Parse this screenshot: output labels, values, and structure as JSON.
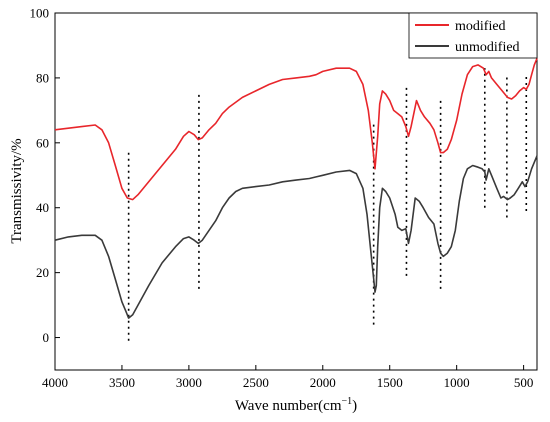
{
  "chart_data": {
    "type": "line",
    "xlabel": "Wave number(cm",
    "xlabel_sup": "−1",
    "xlabel_tail": ")",
    "ylabel": "Transmissivity/%",
    "xlim": [
      4000,
      400
    ],
    "ylim": [
      -10,
      100
    ],
    "x_ticks": [
      4000,
      3500,
      3000,
      2500,
      2000,
      1500,
      1000,
      500
    ],
    "x_tick_labels": [
      "4000",
      "3500",
      "3000",
      "2500",
      "2000",
      "1500",
      "1000",
      "500"
    ],
    "y_ticks": [
      0,
      20,
      40,
      60,
      80,
      100
    ],
    "y_tick_labels": [
      "0",
      "20",
      "40",
      "60",
      "80",
      "100"
    ],
    "grid": false,
    "legend_position": "top-right",
    "series": [
      {
        "name": "modified",
        "color": "#e8262b",
        "points": [
          [
            4000,
            64
          ],
          [
            3900,
            64.5
          ],
          [
            3800,
            65
          ],
          [
            3700,
            65.5
          ],
          [
            3650,
            64
          ],
          [
            3600,
            60
          ],
          [
            3550,
            53
          ],
          [
            3500,
            46
          ],
          [
            3460,
            43
          ],
          [
            3420,
            42.5
          ],
          [
            3380,
            44
          ],
          [
            3300,
            48
          ],
          [
            3200,
            53
          ],
          [
            3100,
            58
          ],
          [
            3040,
            62
          ],
          [
            3000,
            63.5
          ],
          [
            2960,
            62.5
          ],
          [
            2930,
            61
          ],
          [
            2900,
            61.5
          ],
          [
            2850,
            64
          ],
          [
            2800,
            66
          ],
          [
            2750,
            69
          ],
          [
            2700,
            71
          ],
          [
            2600,
            74
          ],
          [
            2500,
            76
          ],
          [
            2400,
            78
          ],
          [
            2300,
            79.5
          ],
          [
            2200,
            80
          ],
          [
            2100,
            80.5
          ],
          [
            2050,
            81
          ],
          [
            2000,
            82
          ],
          [
            1900,
            83
          ],
          [
            1800,
            83
          ],
          [
            1750,
            82
          ],
          [
            1700,
            78
          ],
          [
            1660,
            70
          ],
          [
            1630,
            60
          ],
          [
            1610,
            52
          ],
          [
            1590,
            62
          ],
          [
            1575,
            72
          ],
          [
            1555,
            76
          ],
          [
            1530,
            75
          ],
          [
            1500,
            73
          ],
          [
            1470,
            70
          ],
          [
            1440,
            69
          ],
          [
            1410,
            68
          ],
          [
            1380,
            65
          ],
          [
            1360,
            62
          ],
          [
            1340,
            65
          ],
          [
            1300,
            73
          ],
          [
            1270,
            70
          ],
          [
            1240,
            68
          ],
          [
            1200,
            66
          ],
          [
            1170,
            64
          ],
          [
            1140,
            60
          ],
          [
            1120,
            57
          ],
          [
            1100,
            57
          ],
          [
            1070,
            58
          ],
          [
            1040,
            61
          ],
          [
            1000,
            67
          ],
          [
            960,
            75
          ],
          [
            920,
            81
          ],
          [
            880,
            83.5
          ],
          [
            840,
            84
          ],
          [
            800,
            83
          ],
          [
            780,
            81
          ],
          [
            760,
            82
          ],
          [
            740,
            80
          ],
          [
            700,
            78
          ],
          [
            660,
            76
          ],
          [
            620,
            74
          ],
          [
            590,
            73.5
          ],
          [
            560,
            74.5
          ],
          [
            530,
            76
          ],
          [
            500,
            77
          ],
          [
            480,
            76.5
          ],
          [
            460,
            78
          ],
          [
            440,
            81
          ],
          [
            420,
            84
          ],
          [
            400,
            86
          ]
        ]
      },
      {
        "name": "unmodified",
        "color": "#3a3a3a",
        "points": [
          [
            4000,
            30
          ],
          [
            3900,
            31
          ],
          [
            3800,
            31.5
          ],
          [
            3700,
            31.5
          ],
          [
            3650,
            30
          ],
          [
            3600,
            25
          ],
          [
            3550,
            18
          ],
          [
            3500,
            11
          ],
          [
            3470,
            8
          ],
          [
            3450,
            6
          ],
          [
            3420,
            7
          ],
          [
            3380,
            10
          ],
          [
            3300,
            16
          ],
          [
            3200,
            23
          ],
          [
            3100,
            28
          ],
          [
            3040,
            30.5
          ],
          [
            3000,
            31
          ],
          [
            2960,
            30
          ],
          [
            2930,
            29
          ],
          [
            2900,
            30
          ],
          [
            2850,
            33
          ],
          [
            2800,
            36
          ],
          [
            2750,
            40
          ],
          [
            2700,
            43
          ],
          [
            2650,
            45
          ],
          [
            2600,
            46
          ],
          [
            2500,
            46.5
          ],
          [
            2400,
            47
          ],
          [
            2300,
            48
          ],
          [
            2200,
            48.5
          ],
          [
            2100,
            49
          ],
          [
            2050,
            49.5
          ],
          [
            2000,
            50
          ],
          [
            1900,
            51
          ],
          [
            1800,
            51.5
          ],
          [
            1750,
            50.5
          ],
          [
            1700,
            46
          ],
          [
            1670,
            38
          ],
          [
            1640,
            26
          ],
          [
            1620,
            18
          ],
          [
            1610,
            14
          ],
          [
            1600,
            16
          ],
          [
            1590,
            28
          ],
          [
            1575,
            40
          ],
          [
            1555,
            46
          ],
          [
            1530,
            45
          ],
          [
            1500,
            43
          ],
          [
            1460,
            38
          ],
          [
            1440,
            34
          ],
          [
            1410,
            33
          ],
          [
            1380,
            33.5
          ],
          [
            1360,
            29
          ],
          [
            1340,
            33
          ],
          [
            1310,
            43
          ],
          [
            1280,
            42
          ],
          [
            1250,
            40
          ],
          [
            1210,
            37
          ],
          [
            1170,
            35
          ],
          [
            1140,
            29
          ],
          [
            1120,
            26
          ],
          [
            1100,
            25
          ],
          [
            1070,
            26
          ],
          [
            1040,
            28
          ],
          [
            1010,
            33
          ],
          [
            980,
            42
          ],
          [
            950,
            49
          ],
          [
            920,
            52
          ],
          [
            880,
            53
          ],
          [
            840,
            52.5
          ],
          [
            810,
            52
          ],
          [
            790,
            51
          ],
          [
            780,
            48.5
          ],
          [
            760,
            52
          ],
          [
            740,
            50
          ],
          [
            700,
            46
          ],
          [
            670,
            43
          ],
          [
            650,
            43.5
          ],
          [
            620,
            42.5
          ],
          [
            600,
            43
          ],
          [
            570,
            44
          ],
          [
            540,
            46
          ],
          [
            510,
            48
          ],
          [
            490,
            46.5
          ],
          [
            470,
            48
          ],
          [
            440,
            52
          ],
          [
            420,
            54
          ],
          [
            400,
            56
          ]
        ]
      }
    ],
    "marker_lines": [
      {
        "x": 3450,
        "y_from": -1,
        "y_to": 58
      },
      {
        "x": 2925,
        "y_from": 15,
        "y_to": 75
      },
      {
        "x": 1620,
        "y_from": 4,
        "y_to": 66
      },
      {
        "x": 1375,
        "y_from": 19,
        "y_to": 78
      },
      {
        "x": 1120,
        "y_from": 15,
        "y_to": 74
      },
      {
        "x": 790,
        "y_from": 40,
        "y_to": 83
      },
      {
        "x": 625,
        "y_from": 37,
        "y_to": 81
      },
      {
        "x": 480,
        "y_from": 39,
        "y_to": 81
      }
    ]
  }
}
